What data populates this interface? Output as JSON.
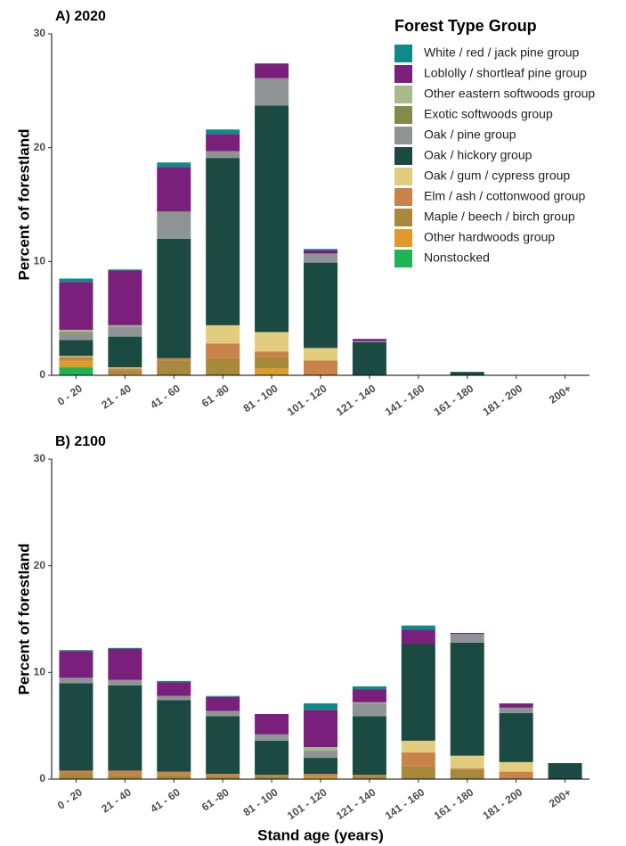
{
  "chart_data": [
    {
      "type": "bar",
      "stacked": true,
      "title": "A) 2020",
      "ylabel": "Percent of forestland",
      "legend_title": "Forest Type Group",
      "legend": "top-right",
      "categories": [
        "0 - 20",
        "21 - 40",
        "41 - 60",
        "61 -80",
        "81 - 100",
        "101 - 120",
        "121 - 140",
        "141 - 160",
        "161 - 180",
        "181 - 200",
        "200+"
      ],
      "ylim": [
        0,
        30
      ],
      "yticks": [
        0,
        10,
        20,
        30
      ],
      "series": [
        {
          "name": "White / red / jack pine group",
          "color": "#0e8a8a",
          "values": [
            0.3,
            0.1,
            0.4,
            0.4,
            0,
            0.1,
            0,
            0,
            0,
            0,
            0
          ]
        },
        {
          "name": "Loblolly / shortleaf pine group",
          "color": "#7b1f7d",
          "values": [
            4.2,
            4.8,
            3.9,
            1.5,
            1.3,
            0.3,
            0.2,
            0,
            0,
            0,
            0
          ]
        },
        {
          "name": "Other eastern softwoods group",
          "color": "#a8b98a",
          "values": [
            0.2,
            0.1,
            0,
            0,
            0,
            0,
            0,
            0,
            0,
            0,
            0
          ]
        },
        {
          "name": "Exotic softwoods group",
          "color": "#848a4a",
          "values": [
            0.1,
            0,
            0.1,
            0,
            0,
            0,
            0,
            0,
            0,
            0,
            0
          ]
        },
        {
          "name": "Oak / pine group",
          "color": "#8e9494",
          "values": [
            0.6,
            0.9,
            2.3,
            0.6,
            2.4,
            0.8,
            0.1,
            0,
            0,
            0,
            0
          ]
        },
        {
          "name": "Oak / hickory group",
          "color": "#1b4a42",
          "values": [
            1.4,
            2.7,
            10.5,
            14.7,
            19.9,
            7.5,
            2.9,
            0,
            0.3,
            0,
            0
          ]
        },
        {
          "name": "Oak / gum / cypress group",
          "color": "#e2cc7e",
          "values": [
            0.1,
            0.1,
            0,
            1.6,
            1.7,
            1.1,
            0,
            0,
            0,
            0,
            0
          ]
        },
        {
          "name": "Elm / ash / cottonwood group",
          "color": "#c8824a",
          "values": [
            0.2,
            0.2,
            0.2,
            1.3,
            0.5,
            1.3,
            0,
            0,
            0,
            0,
            0
          ]
        },
        {
          "name": "Maple / beech / birch group",
          "color": "#a8883a",
          "values": [
            0.1,
            0.3,
            1.3,
            1.5,
            1.0,
            0,
            0,
            0,
            0,
            0,
            0
          ]
        },
        {
          "name": "Other hardwoods group",
          "color": "#e09a2a",
          "values": [
            0.6,
            0.1,
            0,
            0,
            0.6,
            0,
            0,
            0,
            0,
            0,
            0
          ]
        },
        {
          "name": "Nonstocked",
          "color": "#1db454",
          "values": [
            0.7,
            0,
            0,
            0,
            0,
            0,
            0,
            0,
            0,
            0,
            0
          ]
        }
      ]
    },
    {
      "type": "bar",
      "stacked": true,
      "title": "B) 2100",
      "ylabel": "Percent of forestland",
      "xlabel": "Stand age (years)",
      "categories": [
        "0 - 20",
        "21 - 40",
        "41 - 60",
        "61 -80",
        "81 - 100",
        "101 - 120",
        "121 - 140",
        "141 - 160",
        "161 - 180",
        "181 - 200",
        "200+"
      ],
      "ylim": [
        0,
        30
      ],
      "yticks": [
        0,
        10,
        20,
        30
      ],
      "series": [
        {
          "name": "White / red / jack pine group",
          "color": "#0e8a8a",
          "values": [
            0.1,
            0.1,
            0.1,
            0.1,
            0,
            0.6,
            0.3,
            0.4,
            0,
            0,
            0
          ]
        },
        {
          "name": "Loblolly / shortleaf pine group",
          "color": "#7b1f7d",
          "values": [
            2.5,
            2.9,
            1.3,
            1.3,
            1.9,
            3.5,
            1.2,
            1.3,
            0.1,
            0.4,
            0
          ]
        },
        {
          "name": "Other eastern softwoods group",
          "color": "#a8b98a",
          "values": [
            0,
            0,
            0,
            0,
            0,
            0.3,
            0.1,
            0,
            0,
            0,
            0
          ]
        },
        {
          "name": "Exotic softwoods group",
          "color": "#848a4a",
          "values": [
            0,
            0,
            0,
            0,
            0,
            0,
            0,
            0,
            0,
            0,
            0
          ]
        },
        {
          "name": "Oak / pine group",
          "color": "#8e9494",
          "values": [
            0.5,
            0.5,
            0.4,
            0.5,
            0.6,
            0.7,
            1.2,
            0,
            0.8,
            0.5,
            0
          ]
        },
        {
          "name": "Oak / hickory group",
          "color": "#1b4a42",
          "values": [
            8.2,
            8.0,
            6.7,
            5.4,
            3.2,
            1.5,
            5.5,
            9.1,
            10.6,
            4.6,
            1.5
          ]
        },
        {
          "name": "Oak / gum / cypress group",
          "color": "#e2cc7e",
          "values": [
            0,
            0,
            0,
            0,
            0,
            0,
            0,
            1.1,
            1.2,
            0.9,
            0
          ]
        },
        {
          "name": "Elm / ash / cottonwood group",
          "color": "#c8824a",
          "values": [
            0.3,
            0.4,
            0.3,
            0.2,
            0.1,
            0.2,
            0.1,
            1.3,
            0.1,
            0.7,
            0
          ]
        },
        {
          "name": "Maple / beech / birch group",
          "color": "#a8883a",
          "values": [
            0.5,
            0.4,
            0.4,
            0.3,
            0.3,
            0.1,
            0.3,
            1.2,
            0.9,
            0,
            0
          ]
        },
        {
          "name": "Other hardwoods group",
          "color": "#e09a2a",
          "values": [
            0,
            0,
            0,
            0,
            0,
            0.2,
            0,
            0,
            0,
            0,
            0
          ]
        },
        {
          "name": "Nonstocked",
          "color": "#1db454",
          "values": [
            0,
            0,
            0,
            0,
            0,
            0,
            0,
            0,
            0,
            0,
            0
          ]
        }
      ]
    }
  ]
}
